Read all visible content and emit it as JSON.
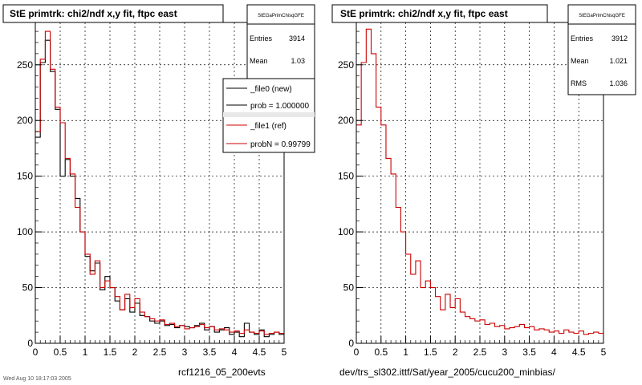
{
  "chart_data": [
    {
      "type": "histogram",
      "title": "StE primtrk: chi2/ndf x,y fit, ftpc east",
      "xlabel": "rcf1216_05_200evts",
      "xlim": [
        0,
        5
      ],
      "ylim": [
        0,
        288
      ],
      "xticks": [
        "0",
        "0.5",
        "1",
        "1.5",
        "2",
        "2.5",
        "3",
        "3.5",
        "4",
        "4.5",
        "5"
      ],
      "yticks": [
        "0",
        "50",
        "100",
        "150",
        "200",
        "250"
      ],
      "bin_width": 0.1,
      "series": [
        {
          "name": "_file0 (new)",
          "color": "#000000",
          "values": [
            185,
            252,
            272,
            244,
            210,
            150,
            165,
            150,
            130,
            100,
            78,
            65,
            72,
            48,
            60,
            50,
            38,
            30,
            40,
            28,
            36,
            25,
            24,
            20,
            18,
            20,
            16,
            17,
            14,
            16,
            15,
            14,
            16,
            18,
            12,
            15,
            10,
            12,
            14,
            8,
            10,
            6,
            18,
            10,
            8,
            12,
            6,
            8,
            10,
            8
          ]
        },
        {
          "name": "_file1 (ref)",
          "color": "#cc0000",
          "values": [
            190,
            255,
            280,
            246,
            212,
            198,
            166,
            152,
            122,
            100,
            80,
            62,
            74,
            50,
            56,
            50,
            42,
            30,
            44,
            32,
            40,
            28,
            24,
            22,
            20,
            21,
            17,
            18,
            15,
            16,
            13,
            14,
            15,
            17,
            14,
            15,
            12,
            13,
            12,
            10,
            11,
            9,
            12,
            10,
            9,
            11,
            8,
            9,
            10,
            9
          ]
        }
      ],
      "legend": {
        "placement": "top-right",
        "entries": [
          "_file0 (new)",
          "prob = 1.000000",
          "_file1 (ref)",
          "probN = 0.99799"
        ]
      },
      "stats": {
        "name": "StEGaPrimChisqGFE",
        "Entries": "3914",
        "Mean": "1.03",
        "RMS": ""
      }
    },
    {
      "type": "histogram",
      "title": "StE primtrk: chi2/ndf x,y fit, ftpc east",
      "xlabel": "dev/trs_sl302.ittf/Sat/year_2005/cucu200_minbias/",
      "xlim": [
        0,
        5
      ],
      "ylim": [
        0,
        288
      ],
      "xticks": [
        "0",
        "0.5",
        "1",
        "1.5",
        "2",
        "2.5",
        "3",
        "3.5",
        "4",
        "4.5",
        "5"
      ],
      "yticks": [
        "0",
        "50",
        "100",
        "150",
        "200",
        "250"
      ],
      "bin_width": 0.1,
      "series": [
        {
          "name": "",
          "color": "#cc0000",
          "values": [
            196,
            252,
            282,
            260,
            212,
            196,
            166,
            152,
            122,
            100,
            80,
            62,
            74,
            50,
            56,
            50,
            42,
            30,
            44,
            32,
            40,
            28,
            24,
            22,
            20,
            21,
            17,
            18,
            15,
            16,
            13,
            14,
            15,
            17,
            14,
            15,
            12,
            13,
            12,
            10,
            11,
            9,
            12,
            10,
            9,
            11,
            8,
            9,
            10,
            9
          ]
        }
      ],
      "stats": {
        "name": "StEGaPrimChisqGFE",
        "Entries": "3912",
        "Mean": "1.021",
        "RMS": "1.036"
      }
    }
  ],
  "footer_text": "Wed Aug 10 18:17:03 2005"
}
